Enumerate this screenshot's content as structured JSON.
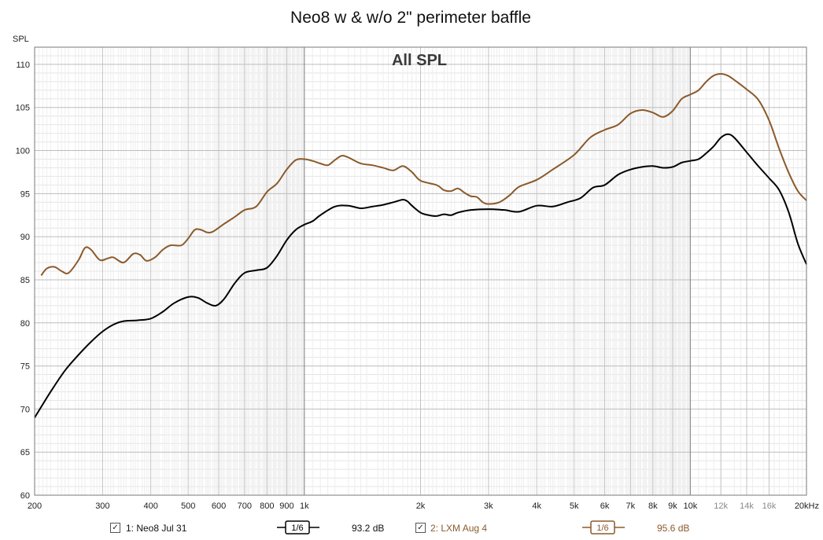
{
  "chart_data": {
    "type": "line",
    "title": "Neo8 w & w/o 2\" perimeter baffle",
    "subtitle": "All SPL",
    "ylabel": "SPL",
    "xlabel": "",
    "x_scale": "log",
    "xlim": [
      200,
      20000
    ],
    "ylim": [
      60,
      112
    ],
    "grid": true,
    "x_ticks": [
      {
        "v": 200,
        "label": "200"
      },
      {
        "v": 300,
        "label": "300"
      },
      {
        "v": 400,
        "label": "400"
      },
      {
        "v": 500,
        "label": "500"
      },
      {
        "v": 600,
        "label": "600"
      },
      {
        "v": 700,
        "label": "700"
      },
      {
        "v": 800,
        "label": "800"
      },
      {
        "v": 900,
        "label": "900"
      },
      {
        "v": 1000,
        "label": "1k"
      },
      {
        "v": 2000,
        "label": "2k"
      },
      {
        "v": 3000,
        "label": "3k"
      },
      {
        "v": 4000,
        "label": "4k"
      },
      {
        "v": 5000,
        "label": "5k"
      },
      {
        "v": 6000,
        "label": "6k"
      },
      {
        "v": 7000,
        "label": "7k"
      },
      {
        "v": 8000,
        "label": "8k"
      },
      {
        "v": 9000,
        "label": "9k"
      },
      {
        "v": 10000,
        "label": "10k"
      },
      {
        "v": 12000,
        "label": "12k"
      },
      {
        "v": 14000,
        "label": "14k"
      },
      {
        "v": 16000,
        "label": "16k"
      },
      {
        "v": 20000,
        "label": "20kHz"
      }
    ],
    "y_ticks": [
      60,
      65,
      70,
      75,
      80,
      85,
      90,
      95,
      100,
      105,
      110
    ],
    "series": [
      {
        "name": "1: Neo8 Jul 31",
        "color": "#000000",
        "points": [
          [
            200,
            69.0
          ],
          [
            220,
            72.0
          ],
          [
            240,
            74.5
          ],
          [
            260,
            76.3
          ],
          [
            280,
            77.8
          ],
          [
            300,
            79.0
          ],
          [
            320,
            79.8
          ],
          [
            340,
            80.2
          ],
          [
            370,
            80.3
          ],
          [
            400,
            80.5
          ],
          [
            430,
            81.3
          ],
          [
            460,
            82.3
          ],
          [
            500,
            83.0
          ],
          [
            530,
            82.9
          ],
          [
            560,
            82.3
          ],
          [
            590,
            82.0
          ],
          [
            620,
            82.8
          ],
          [
            660,
            84.6
          ],
          [
            700,
            85.8
          ],
          [
            750,
            86.1
          ],
          [
            800,
            86.4
          ],
          [
            850,
            87.8
          ],
          [
            900,
            89.6
          ],
          [
            950,
            90.8
          ],
          [
            1000,
            91.4
          ],
          [
            1050,
            91.8
          ],
          [
            1100,
            92.5
          ],
          [
            1200,
            93.5
          ],
          [
            1300,
            93.6
          ],
          [
            1400,
            93.3
          ],
          [
            1500,
            93.5
          ],
          [
            1600,
            93.7
          ],
          [
            1700,
            94.0
          ],
          [
            1800,
            94.3
          ],
          [
            1850,
            94.1
          ],
          [
            1900,
            93.6
          ],
          [
            2000,
            92.8
          ],
          [
            2100,
            92.5
          ],
          [
            2200,
            92.4
          ],
          [
            2300,
            92.6
          ],
          [
            2400,
            92.5
          ],
          [
            2500,
            92.8
          ],
          [
            2700,
            93.1
          ],
          [
            3000,
            93.2
          ],
          [
            3300,
            93.1
          ],
          [
            3600,
            92.9
          ],
          [
            4000,
            93.6
          ],
          [
            4400,
            93.5
          ],
          [
            4800,
            94.0
          ],
          [
            5200,
            94.5
          ],
          [
            5600,
            95.7
          ],
          [
            6000,
            96.0
          ],
          [
            6500,
            97.2
          ],
          [
            7000,
            97.8
          ],
          [
            7500,
            98.1
          ],
          [
            8000,
            98.2
          ],
          [
            8500,
            98.0
          ],
          [
            9000,
            98.1
          ],
          [
            9500,
            98.6
          ],
          [
            10000,
            98.8
          ],
          [
            10500,
            99.0
          ],
          [
            11000,
            99.7
          ],
          [
            11500,
            100.5
          ],
          [
            12000,
            101.5
          ],
          [
            12500,
            101.9
          ],
          [
            13000,
            101.5
          ],
          [
            14000,
            99.8
          ],
          [
            15000,
            98.2
          ],
          [
            16000,
            96.8
          ],
          [
            17000,
            95.4
          ],
          [
            18000,
            92.8
          ],
          [
            19000,
            89.2
          ],
          [
            20000,
            86.8
          ]
        ]
      },
      {
        "name": "2: LXM Aug 4",
        "color": "#8B5A2B",
        "points": [
          [
            208,
            85.5
          ],
          [
            215,
            86.3
          ],
          [
            225,
            86.5
          ],
          [
            235,
            86.0
          ],
          [
            245,
            85.8
          ],
          [
            260,
            87.3
          ],
          [
            270,
            88.7
          ],
          [
            280,
            88.5
          ],
          [
            295,
            87.3
          ],
          [
            310,
            87.5
          ],
          [
            320,
            87.6
          ],
          [
            340,
            87.0
          ],
          [
            360,
            88.0
          ],
          [
            375,
            87.9
          ],
          [
            390,
            87.2
          ],
          [
            410,
            87.6
          ],
          [
            430,
            88.5
          ],
          [
            450,
            89.0
          ],
          [
            480,
            89.0
          ],
          [
            500,
            89.8
          ],
          [
            520,
            90.8
          ],
          [
            540,
            90.8
          ],
          [
            560,
            90.5
          ],
          [
            580,
            90.6
          ],
          [
            620,
            91.5
          ],
          [
            660,
            92.3
          ],
          [
            700,
            93.1
          ],
          [
            750,
            93.5
          ],
          [
            800,
            95.2
          ],
          [
            850,
            96.2
          ],
          [
            900,
            97.8
          ],
          [
            950,
            98.9
          ],
          [
            1000,
            99.0
          ],
          [
            1050,
            98.8
          ],
          [
            1100,
            98.5
          ],
          [
            1150,
            98.3
          ],
          [
            1200,
            98.9
          ],
          [
            1250,
            99.4
          ],
          [
            1300,
            99.2
          ],
          [
            1400,
            98.5
          ],
          [
            1500,
            98.3
          ],
          [
            1600,
            98.0
          ],
          [
            1700,
            97.7
          ],
          [
            1800,
            98.2
          ],
          [
            1900,
            97.5
          ],
          [
            2000,
            96.5
          ],
          [
            2200,
            96.0
          ],
          [
            2300,
            95.4
          ],
          [
            2400,
            95.3
          ],
          [
            2500,
            95.6
          ],
          [
            2600,
            95.1
          ],
          [
            2700,
            94.7
          ],
          [
            2800,
            94.6
          ],
          [
            2900,
            94.0
          ],
          [
            3000,
            93.8
          ],
          [
            3200,
            94.0
          ],
          [
            3400,
            94.8
          ],
          [
            3600,
            95.8
          ],
          [
            4000,
            96.6
          ],
          [
            4400,
            97.8
          ],
          [
            5000,
            99.5
          ],
          [
            5500,
            101.5
          ],
          [
            6000,
            102.4
          ],
          [
            6500,
            103.0
          ],
          [
            7000,
            104.3
          ],
          [
            7500,
            104.7
          ],
          [
            8000,
            104.4
          ],
          [
            8500,
            103.9
          ],
          [
            9000,
            104.6
          ],
          [
            9500,
            106.0
          ],
          [
            10000,
            106.5
          ],
          [
            10500,
            107.0
          ],
          [
            11000,
            108.0
          ],
          [
            11500,
            108.7
          ],
          [
            12000,
            108.9
          ],
          [
            12500,
            108.7
          ],
          [
            13000,
            108.2
          ],
          [
            14000,
            107.1
          ],
          [
            15000,
            105.9
          ],
          [
            16000,
            103.5
          ],
          [
            17000,
            100.2
          ],
          [
            18000,
            97.4
          ],
          [
            19000,
            95.3
          ],
          [
            20000,
            94.2
          ]
        ]
      }
    ]
  },
  "legend": [
    {
      "checkbox": "✓",
      "label": "1: Neo8 Jul 31",
      "smoothing": "1/6",
      "value": "93.2 dB",
      "color": "#000000"
    },
    {
      "checkbox": "✓",
      "label": "2: LXM Aug 4",
      "smoothing": "1/6",
      "value": "95.6 dB",
      "color": "#8B5A2B"
    }
  ]
}
